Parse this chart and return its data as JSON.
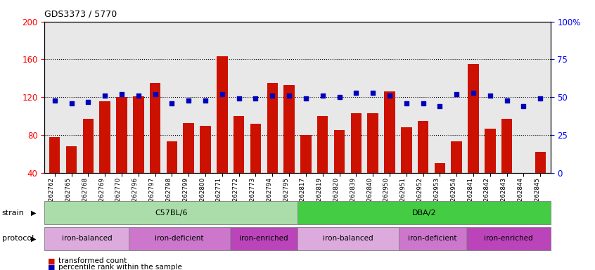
{
  "title": "GDS3373 / 5770",
  "samples": [
    "GSM262762",
    "GSM262765",
    "GSM262768",
    "GSM262769",
    "GSM262770",
    "GSM262796",
    "GSM262797",
    "GSM262798",
    "GSM262799",
    "GSM262800",
    "GSM262771",
    "GSM262772",
    "GSM262773",
    "GSM262794",
    "GSM262795",
    "GSM262817",
    "GSM262819",
    "GSM262820",
    "GSM262839",
    "GSM262840",
    "GSM262950",
    "GSM262951",
    "GSM262952",
    "GSM262953",
    "GSM262954",
    "GSM262841",
    "GSM262842",
    "GSM262843",
    "GSM262844",
    "GSM262845"
  ],
  "bar_values": [
    78,
    68,
    97,
    116,
    120,
    121,
    135,
    73,
    93,
    90,
    163,
    100,
    92,
    135,
    133,
    80,
    100,
    85,
    103,
    103,
    126,
    88,
    95,
    50,
    73,
    155,
    87,
    97,
    40,
    62
  ],
  "percentile_values": [
    48,
    46,
    47,
    51,
    52,
    51,
    52,
    46,
    48,
    48,
    52,
    49,
    49,
    51,
    51,
    49,
    51,
    50,
    53,
    53,
    51,
    46,
    46,
    44,
    52,
    53,
    51,
    48,
    44,
    49
  ],
  "strain_groups": [
    {
      "label": "C57BL/6",
      "start": 0,
      "end": 15,
      "color": "#aaddaa"
    },
    {
      "label": "DBA/2",
      "start": 15,
      "end": 30,
      "color": "#44cc44"
    }
  ],
  "protocol_groups": [
    {
      "label": "iron-balanced",
      "start": 0,
      "end": 5,
      "color": "#ddaadd"
    },
    {
      "label": "iron-deficient",
      "start": 5,
      "end": 11,
      "color": "#cc77cc"
    },
    {
      "label": "iron-enriched",
      "start": 11,
      "end": 15,
      "color": "#bb44bb"
    },
    {
      "label": "iron-balanced",
      "start": 15,
      "end": 21,
      "color": "#ddaadd"
    },
    {
      "label": "iron-deficient",
      "start": 21,
      "end": 25,
      "color": "#cc77cc"
    },
    {
      "label": "iron-enriched",
      "start": 25,
      "end": 30,
      "color": "#bb44bb"
    }
  ],
  "bar_color": "#cc1100",
  "dot_color": "#0000bb",
  "ylim_left": [
    40,
    200
  ],
  "ylim_right": [
    0,
    100
  ],
  "yticks_left": [
    40,
    80,
    120,
    160,
    200
  ],
  "yticks_right": [
    0,
    25,
    50,
    75,
    100
  ],
  "right_tick_labels": [
    "0",
    "25",
    "50",
    "75",
    "100%"
  ],
  "hlines": [
    80,
    120,
    160
  ],
  "bg_color": "#e8e8e8"
}
